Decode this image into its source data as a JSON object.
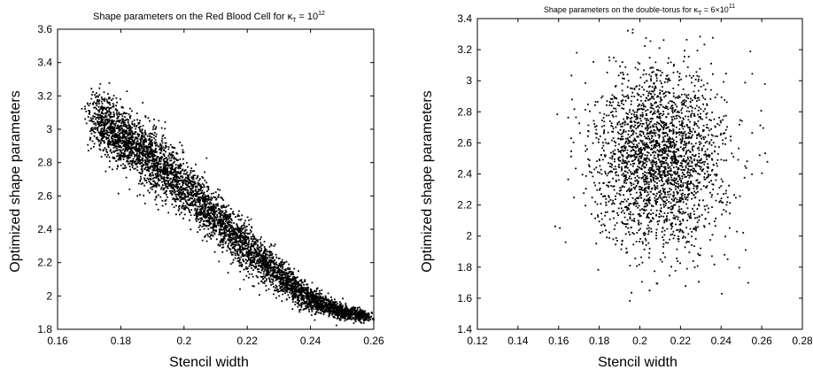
{
  "chart_data": [
    {
      "type": "scatter",
      "title": {
        "prefix": "Shape parameters on the Red Blood Cell for ",
        "symbol": "κ",
        "subscript": "T",
        "eq": " = 10",
        "superscript": "12"
      },
      "xlabel": "Stencil width",
      "ylabel": "Optimized shape parameters",
      "xlim": [
        0.16,
        0.26
      ],
      "ylim": [
        1.8,
        3.6
      ],
      "xticks": [
        "0.16",
        "0.18",
        "0.2",
        "0.22",
        "0.24",
        "0.26"
      ],
      "yticks": [
        "1.8",
        "2",
        "2.2",
        "2.4",
        "2.6",
        "2.8",
        "3",
        "3.2",
        "3.4",
        "3.6"
      ],
      "marker_color": "#000000",
      "distribution": {
        "shape": "curved band, decreasing",
        "x_range": [
          0.172,
          0.258
        ],
        "trend_x": [
          0.172,
          0.18,
          0.19,
          0.2,
          0.21,
          0.22,
          0.23,
          0.24,
          0.25,
          0.258
        ],
        "trend_y": [
          3.05,
          2.97,
          2.82,
          2.66,
          2.47,
          2.29,
          2.12,
          1.98,
          1.9,
          1.88
        ],
        "spread_y": [
          0.12,
          0.12,
          0.12,
          0.11,
          0.1,
          0.09,
          0.07,
          0.05,
          0.03,
          0.02
        ],
        "approx_points": 5000
      }
    },
    {
      "type": "scatter",
      "title": {
        "prefix": "Shape parameters on the double-torus for ",
        "symbol": "κ",
        "subscript": "T",
        "eq": " = 6×10",
        "superscript": "11"
      },
      "xlabel": "Stencil width",
      "ylabel": "Optimized shape parameters",
      "xlim": [
        0.12,
        0.28
      ],
      "ylim": [
        1.4,
        3.4
      ],
      "xticks": [
        "0.12",
        "0.14",
        "0.16",
        "0.18",
        "0.2",
        "0.22",
        "0.24",
        "0.26",
        "0.28"
      ],
      "yticks": [
        "1.4",
        "1.6",
        "1.8",
        "2",
        "2.2",
        "2.4",
        "2.6",
        "2.8",
        "3",
        "3.2",
        "3.4"
      ],
      "marker_color": "#000000",
      "distribution": {
        "shape": "diffuse cloud",
        "center": [
          0.21,
          2.5
        ],
        "spread": [
          0.016,
          0.28
        ],
        "x_range": [
          0.158,
          0.268
        ],
        "y_range": [
          1.58,
          3.35
        ],
        "approx_points": 2500
      }
    }
  ]
}
